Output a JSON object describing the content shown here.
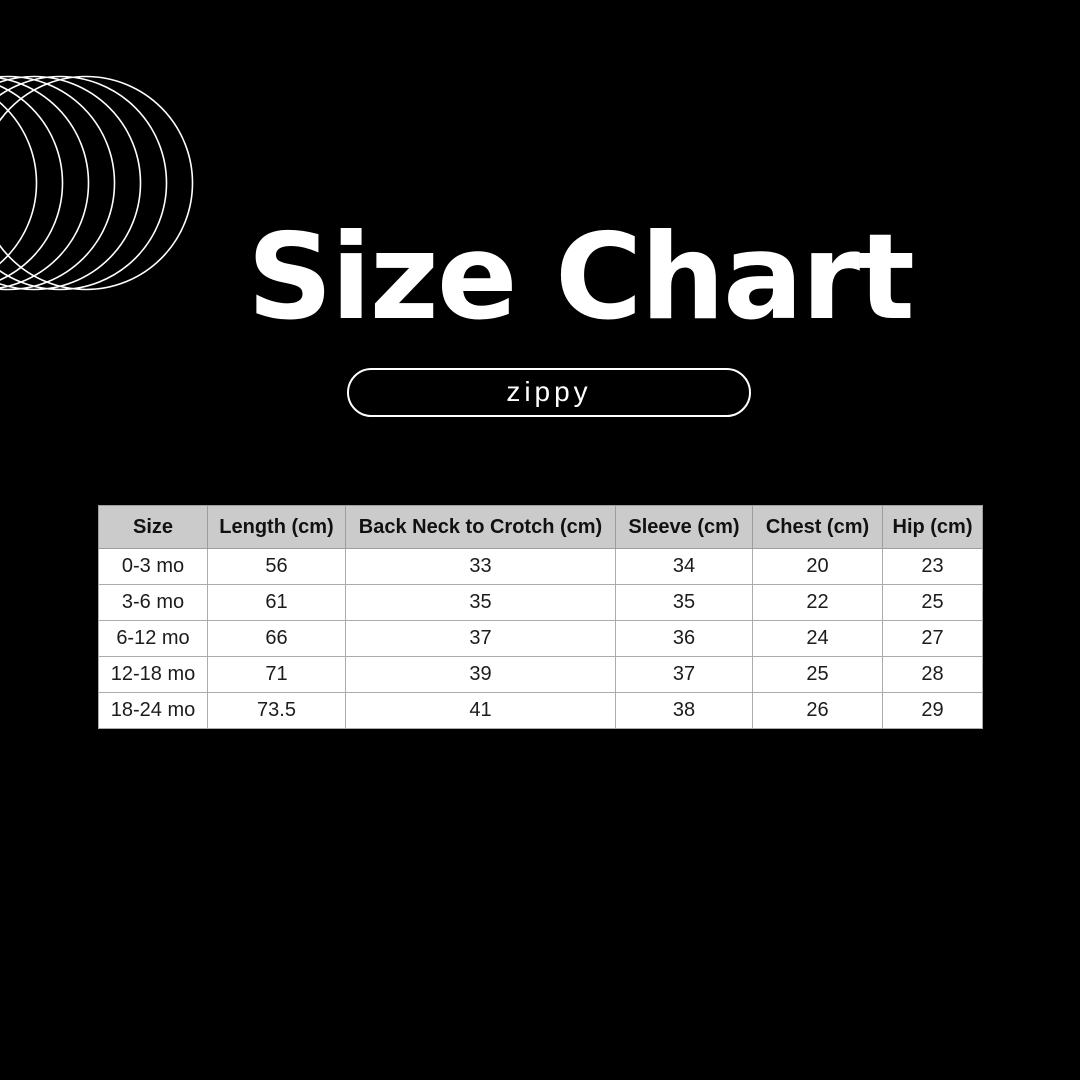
{
  "header": {
    "title": "Size Chart",
    "brand": "zippy"
  },
  "colors": {
    "background": "#000000",
    "foreground": "#ffffff",
    "table_header_bg": "#cbcbcb",
    "table_body_bg": "#ffffff",
    "table_border": "#ababab",
    "table_text": "#1c1c1c"
  },
  "decoration": {
    "name": "overlapping-circles",
    "circle_count": 7,
    "stroke": "#ffffff"
  },
  "chart_data": {
    "type": "table",
    "title": "Size Chart",
    "columns": [
      "Size",
      "Length (cm)",
      "Back Neck to Crotch (cm)",
      "Sleeve (cm)",
      "Chest (cm)",
      "Hip (cm)"
    ],
    "rows": [
      [
        "0-3 mo",
        "56",
        "33",
        "34",
        "20",
        "23"
      ],
      [
        "3-6 mo",
        "61",
        "35",
        "35",
        "22",
        "25"
      ],
      [
        "6-12 mo",
        "66",
        "37",
        "36",
        "24",
        "27"
      ],
      [
        "12-18 mo",
        "71",
        "39",
        "37",
        "25",
        "28"
      ],
      [
        "18-24 mo",
        "73.5",
        "41",
        "38",
        "26",
        "29"
      ]
    ]
  }
}
